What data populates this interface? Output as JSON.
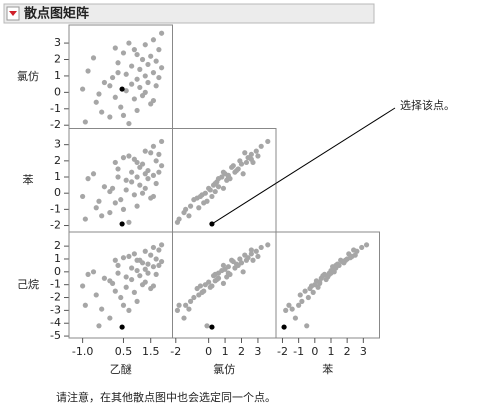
{
  "chart_data": {
    "type": "scatter_matrix",
    "title": "散点图矩阵",
    "annotation": "选择该点。",
    "caption": "请注意，在其他散点图中也会选定同一个点。",
    "point_color": "#a6a6a6",
    "selected_color": "#000000",
    "selected": 0,
    "variables": [
      {
        "name": "乙醚",
        "lim": [
          -1.5,
          2.3
        ],
        "xticks": [
          {
            "value": -1,
            "label": "-1.0"
          },
          0.5,
          1.5
        ],
        "values": [
          0.45,
          -0.9,
          -0.8,
          -0.5,
          -0.3,
          -0.2,
          0.0,
          0.1,
          0.2,
          0.3,
          0.4,
          0.5,
          0.6,
          0.6,
          0.7,
          0.8,
          0.8,
          0.9,
          0.9,
          1.0,
          1.0,
          1.1,
          1.1,
          1.2,
          1.2,
          1.3,
          1.3,
          1.4,
          1.4,
          1.5,
          1.5,
          1.6,
          1.6,
          1.7,
          1.7,
          1.8,
          1.9,
          1.9,
          -1.0,
          -0.6,
          0.2,
          0.5,
          0.0,
          1.0,
          1.3,
          0.7,
          -0.4,
          1.6,
          0.3,
          1.8
        ]
      },
      {
        "name": "氯仿",
        "lim": [
          -2.2,
          4.1
        ],
        "yticks": [
          -2,
          -1,
          0,
          1,
          2,
          3
        ],
        "xticks": [
          -2,
          0,
          1,
          2,
          3
        ],
        "values": [
          0.2,
          -1.8,
          1.3,
          -0.6,
          -1.2,
          0.6,
          -1.5,
          0.9,
          -0.3,
          1.8,
          -0.9,
          2.4,
          0.1,
          1.1,
          -1.9,
          0.5,
          1.6,
          -0.4,
          2.6,
          0.8,
          -1.1,
          1.4,
          0.3,
          2.0,
          -0.2,
          1.0,
          2.9,
          0.6,
          1.7,
          -0.7,
          2.2,
          1.2,
          3.2,
          0.4,
          1.9,
          2.6,
          3.6,
          1.5,
          0.2,
          2.1,
          2.7,
          -1.4,
          0.4,
          2.3,
          0.0,
          3.0,
          -0.1,
          -0.5,
          1.2,
          0.9
        ]
      },
      {
        "name": "苯",
        "lim": [
          -2.4,
          4.0
        ],
        "yticks": [
          -2,
          -1,
          0,
          1,
          2,
          3
        ],
        "xticks": [
          -2,
          -1,
          0,
          1,
          2,
          3
        ],
        "values": [
          -1.9,
          -1.6,
          0.9,
          -0.9,
          -1.4,
          0.4,
          -1.2,
          0.3,
          -0.6,
          1.5,
          -0.4,
          2.2,
          0.2,
          0.8,
          -1.8,
          0.7,
          1.3,
          -0.1,
          2.1,
          1.0,
          -0.8,
          1.6,
          0.5,
          1.8,
          0.0,
          1.2,
          2.6,
          0.9,
          1.4,
          -0.3,
          2.5,
          1.1,
          2.9,
          0.6,
          2.0,
          2.4,
          3.2,
          1.7,
          -0.2,
          1.2,
          1.9,
          -1.0,
          0.1,
          1.9,
          0.3,
          2.3,
          -0.5,
          -0.2,
          1.0,
          1.3
        ]
      },
      {
        "name": "己烷",
        "lim": [
          -5.15,
          3.1
        ],
        "yticks": [
          -5,
          -4,
          -3,
          -2,
          -1,
          0,
          1,
          2
        ],
        "values": [
          -4.3,
          -2.6,
          -0.2,
          -1.8,
          -2.9,
          -0.5,
          -3.6,
          -0.9,
          -1.5,
          0.5,
          -2.0,
          1.1,
          -1.2,
          -0.4,
          -3.0,
          -0.6,
          0.3,
          -1.6,
          1.4,
          0.1,
          -2.3,
          0.9,
          -0.3,
          0.7,
          -1.0,
          0.2,
          1.6,
          -0.1,
          0.6,
          -1.3,
          1.3,
          0.4,
          1.9,
          -0.2,
          1.0,
          1.7,
          2.1,
          0.8,
          -1.1,
          0.0,
          0.9,
          -2.6,
          -0.7,
          0.9,
          -0.8,
          1.2,
          -4.2,
          -1.1,
          -0.1,
          0.5
        ]
      }
    ]
  }
}
